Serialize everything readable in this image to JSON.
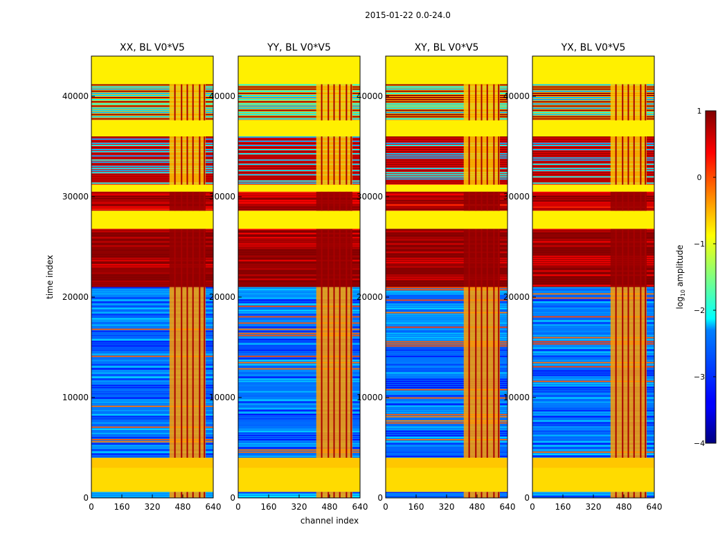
{
  "chart_data": {
    "type": "heatmap",
    "suptitle": "2015-01-22 0.0-24.0",
    "xlabel": "channel index",
    "ylabel": "time index",
    "xlim": [
      0,
      640
    ],
    "ylim": [
      0,
      44000
    ],
    "xticks": [
      "0",
      "160",
      "320",
      "480",
      "640"
    ],
    "xtick_values": [
      0,
      160,
      320,
      480,
      640
    ],
    "yticks": [
      "0",
      "10000",
      "20000",
      "30000",
      "40000"
    ],
    "ytick_values": [
      0,
      10000,
      20000,
      30000,
      40000
    ],
    "panels": [
      {
        "title": "XX, BL V0*V5",
        "pol": "XX"
      },
      {
        "title": "YY, BL V0*V5",
        "pol": "YY"
      },
      {
        "title": "XY, BL V0*V5",
        "pol": "XY"
      },
      {
        "title": "YX, BL V0*V5",
        "pol": "YX"
      }
    ],
    "colorbar": {
      "label": "log10 amplitude",
      "label_main": "log",
      "label_sub": "10",
      "label_rest": " amplitude",
      "range": [
        -4,
        1
      ],
      "ticks": [
        "1",
        "0",
        "−1",
        "−2",
        "−3",
        "−4"
      ],
      "tick_values": [
        1,
        0,
        -1,
        -2,
        -3,
        -4
      ],
      "colormap": "jet"
    },
    "signal_channel_band": [
      410,
      600
    ],
    "time_bands": [
      {
        "t0": 0,
        "t1": 600,
        "value": -2.7,
        "kind": "noise"
      },
      {
        "t0": 600,
        "t1": 3000,
        "value": -0.7,
        "kind": "flag"
      },
      {
        "t0": 3000,
        "t1": 4000,
        "value": -0.6,
        "kind": "flag"
      },
      {
        "t0": 4000,
        "t1": 21000,
        "value": -2.8,
        "kind": "noise"
      },
      {
        "t0": 21000,
        "t1": 26800,
        "value": 0.9,
        "kind": "saturated"
      },
      {
        "t0": 26800,
        "t1": 28600,
        "value": -0.8,
        "kind": "flag"
      },
      {
        "t0": 28600,
        "t1": 30500,
        "value": 0.7,
        "kind": "saturated"
      },
      {
        "t0": 30500,
        "t1": 31200,
        "value": -0.8,
        "kind": "flag"
      },
      {
        "t0": 31200,
        "t1": 36000,
        "value": 0.4,
        "kind": "mixed"
      },
      {
        "t0": 36000,
        "t1": 37600,
        "value": -0.8,
        "kind": "flag"
      },
      {
        "t0": 37600,
        "t1": 41200,
        "value": -0.5,
        "kind": "mixed"
      },
      {
        "t0": 41200,
        "t1": 44000,
        "value": -0.8,
        "kind": "flag"
      }
    ]
  }
}
